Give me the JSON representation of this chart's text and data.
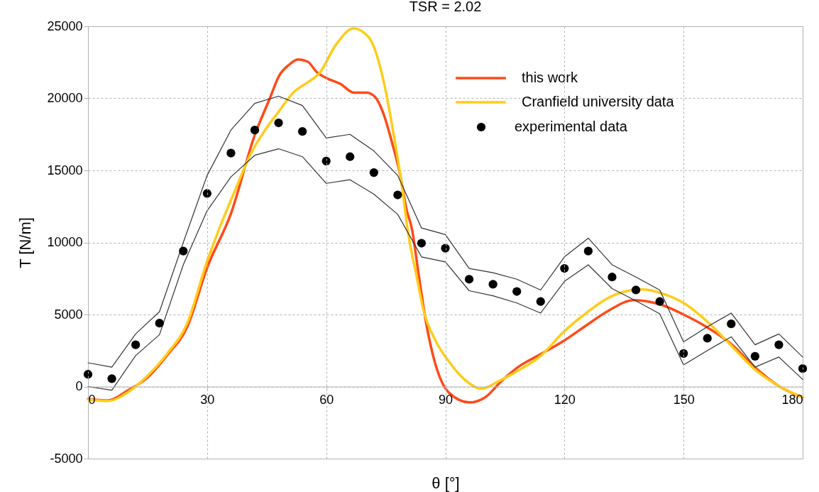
{
  "chart_data": {
    "type": "line",
    "title": "TSR = 2.02",
    "xlabel": "θ [°]",
    "ylabel": "T [N/m]",
    "xlim": [
      0,
      180
    ],
    "ylim": [
      -5000,
      25000
    ],
    "xticks": [
      0,
      30,
      60,
      90,
      120,
      150,
      180
    ],
    "yticks": [
      -5000,
      0,
      5000,
      10000,
      15000,
      20000,
      25000
    ],
    "grid": true,
    "legend": "top right",
    "series": [
      {
        "name": "this work",
        "color": "#ff4a1a",
        "x": [
          0,
          5,
          10,
          15,
          20,
          25,
          30,
          36,
          42,
          45.8,
          48.1,
          50.5,
          52.9,
          55.3,
          57.7,
          60.1,
          63.6,
          66.9,
          70.2,
          72.3,
          74.4,
          76.7,
          78.5,
          80.3,
          81.5,
          83.3,
          85.1,
          87.5,
          91,
          96.1,
          100,
          104.2,
          108.3,
          113.7,
          120,
          125,
          131,
          137.5,
          144.1,
          150,
          156,
          162,
          167.9,
          173.9,
          180
        ],
        "values": [
          -860,
          -960,
          -270,
          630,
          2200,
          4150,
          8250,
          12000,
          17450,
          20000,
          21550,
          22300,
          22700,
          22550,
          21800,
          21400,
          21000,
          20400,
          20400,
          20100,
          18950,
          16800,
          14850,
          12200,
          11050,
          7750,
          4500,
          1550,
          -450,
          -1100,
          -750,
          400,
          1350,
          2200,
          3200,
          4150,
          5250,
          6000,
          5700,
          5000,
          4100,
          2950,
          1350,
          50,
          -750
        ]
      },
      {
        "name": "Cranfield university data",
        "color": "#ffcc1a",
        "x": [
          0,
          5,
          10,
          15,
          20,
          25,
          30,
          32.7,
          37.4,
          41,
          44.6,
          48.1,
          51.7,
          55.3,
          58.3,
          62.4,
          66.9,
          70.8,
          74.4,
          76.7,
          79.1,
          80.6,
          82.7,
          84.5,
          87.5,
          91,
          94.6,
          99.1,
          103.6,
          108.9,
          113.7,
          120,
          125,
          131,
          139.3,
          145.3,
          150,
          156,
          162,
          167.9,
          173.9,
          180
        ],
        "values": [
          -900,
          -1000,
          -400,
          750,
          2300,
          4400,
          8700,
          10700,
          13850,
          16150,
          17800,
          19100,
          20400,
          21100,
          21750,
          23700,
          24850,
          24200,
          21250,
          17950,
          13850,
          10700,
          7750,
          5300,
          3200,
          1700,
          550,
          -150,
          400,
          1200,
          2050,
          3850,
          5000,
          6150,
          6750,
          6400,
          5800,
          4500,
          2850,
          1200,
          50,
          -750
        ]
      },
      {
        "color": "#333333",
        "x": [
          0,
          6,
          12,
          18,
          24,
          30,
          36,
          42,
          48,
          54,
          60,
          66,
          72,
          78,
          84,
          90,
          96,
          102,
          108,
          114,
          120,
          126,
          132,
          138,
          144,
          150,
          156,
          162,
          168,
          174,
          180
        ],
        "values": [
          1650,
          1350,
          3650,
          5200,
          10000,
          14650,
          17800,
          19650,
          20150,
          19500,
          17250,
          17500,
          16350,
          14650,
          11000,
          10550,
          8200,
          7900,
          7450,
          6700,
          9000,
          10300,
          8450,
          7600,
          6700,
          3100,
          4150,
          5100,
          2900,
          3650,
          2050
        ]
      },
      {
        "color": "#333333",
        "x": [
          0,
          6,
          12,
          18,
          24,
          30,
          36,
          42,
          48,
          54,
          60,
          66,
          72,
          78,
          84,
          90,
          96,
          102,
          108,
          114,
          120,
          126,
          132,
          138,
          144,
          150,
          156,
          162,
          168,
          174,
          180
        ],
        "values": [
          0,
          -250,
          2150,
          3600,
          8450,
          12200,
          14550,
          16050,
          16500,
          15950,
          14100,
          14350,
          13350,
          11950,
          9000,
          8650,
          6650,
          6300,
          5800,
          5100,
          7300,
          8450,
          6800,
          5950,
          5050,
          1500,
          2500,
          3450,
          1350,
          2050,
          500
        ]
      },
      {
        "name": "experimental data",
        "type": "scatter",
        "marker": "circle",
        "color": "#000000",
        "x": [
          0,
          6,
          12,
          18,
          24,
          30,
          36,
          42,
          48,
          54,
          60,
          66,
          72,
          78,
          84,
          90,
          96,
          102,
          108,
          114,
          120,
          126,
          132,
          138,
          144,
          150,
          156,
          162,
          168,
          174,
          180
        ],
        "values": [
          850,
          550,
          2900,
          4400,
          9400,
          13400,
          16200,
          17800,
          18300,
          17700,
          15650,
          15950,
          14850,
          13300,
          9950,
          9600,
          7450,
          7100,
          6600,
          5900,
          8200,
          9400,
          7600,
          6700,
          5900,
          2300,
          3350,
          4350,
          2100,
          2900,
          1250
        ]
      }
    ]
  }
}
